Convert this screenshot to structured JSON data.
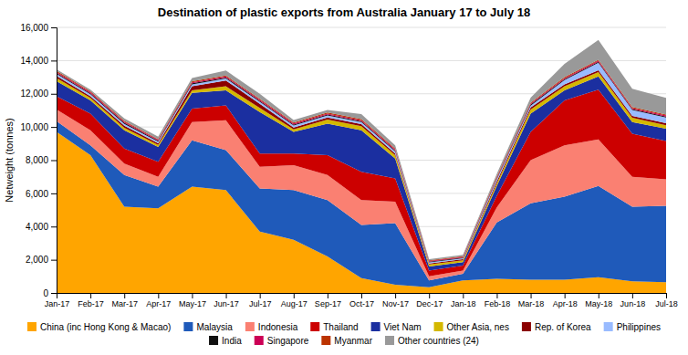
{
  "chart_data": {
    "type": "area",
    "title": "Destination of plastic exports from Australia January 17 to July 18",
    "y_label": "Netweight (tonnes)",
    "stacked": true,
    "grid": true,
    "legend": "bottom",
    "ylim": [
      0,
      16000
    ],
    "yticks": [
      0,
      {
        "value": 2000,
        "label": "2,000"
      },
      {
        "value": 4000,
        "label": "4,000"
      },
      {
        "value": 6000,
        "label": "6,000"
      },
      {
        "value": 8000,
        "label": "8,000"
      },
      {
        "value": 10000,
        "label": "10,000"
      },
      {
        "value": 12000,
        "label": "12,000"
      },
      {
        "value": 14000,
        "label": "14,000"
      },
      {
        "value": 16000,
        "label": "16,000"
      }
    ],
    "categories": [
      "Jan-17",
      "Feb-17",
      "Mar-17",
      "Apr-17",
      "May-17",
      "Jun-17",
      "Jul-17",
      "Aug-17",
      "Sep-17",
      "Oct-17",
      "Nov-17",
      "Dec-17",
      "Jan-18",
      "Feb-18",
      "Mar-18",
      "Apr-18",
      "May-18",
      "Jun-18",
      "Jul-18"
    ],
    "series": [
      {
        "name": "China (inc Hong Kong & Macao)",
        "color": "#FFA500",
        "values": [
          9700,
          8300,
          5200,
          5100,
          6400,
          6200,
          3700,
          3200,
          2200,
          900,
          500,
          350,
          750,
          850,
          800,
          800,
          950,
          700,
          650
        ]
      },
      {
        "name": "Malaysia",
        "color": "#1F5ABA",
        "values": [
          650,
          600,
          1900,
          1300,
          2800,
          2400,
          2600,
          3000,
          3400,
          3200,
          3700,
          400,
          400,
          3400,
          4600,
          5000,
          5500,
          4500,
          4600
        ]
      },
      {
        "name": "Indonesia",
        "color": "#FA8072",
        "values": [
          700,
          900,
          700,
          600,
          1100,
          1800,
          1300,
          1500,
          1500,
          1500,
          1300,
          250,
          200,
          900,
          2600,
          3100,
          2800,
          1800,
          1600
        ]
      },
      {
        "name": "Thailand",
        "color": "#CC0000",
        "values": [
          800,
          1000,
          900,
          900,
          800,
          900,
          800,
          700,
          1200,
          1700,
          1400,
          350,
          300,
          700,
          1700,
          2700,
          3000,
          2600,
          2300
        ]
      },
      {
        "name": "Viet Nam",
        "color": "#1B2FA0",
        "values": [
          900,
          800,
          1100,
          900,
          950,
          900,
          2500,
          1300,
          1900,
          2500,
          1200,
          250,
          200,
          600,
          1100,
          600,
          800,
          700,
          750
        ]
      },
      {
        "name": "Other Asia, nes",
        "color": "#D4B800",
        "values": [
          200,
          150,
          150,
          120,
          150,
          250,
          250,
          150,
          250,
          250,
          200,
          120,
          120,
          150,
          250,
          250,
          250,
          250,
          200
        ]
      },
      {
        "name": "Rep. of Korea",
        "color": "#8B0000",
        "values": [
          120,
          100,
          120,
          100,
          250,
          350,
          250,
          120,
          120,
          120,
          100,
          60,
          60,
          120,
          120,
          120,
          120,
          120,
          120
        ]
      },
      {
        "name": "Philippines",
        "color": "#99BBFF",
        "values": [
          120,
          120,
          120,
          100,
          120,
          120,
          120,
          120,
          120,
          120,
          120,
          60,
          60,
          120,
          120,
          250,
          450,
          350,
          350
        ]
      },
      {
        "name": "India",
        "color": "#111111",
        "values": [
          60,
          60,
          60,
          50,
          60,
          60,
          60,
          60,
          60,
          60,
          60,
          40,
          40,
          60,
          60,
          60,
          60,
          60,
          60
        ]
      },
      {
        "name": "Singapore",
        "color": "#CC0055",
        "values": [
          60,
          60,
          60,
          50,
          60,
          60,
          60,
          60,
          60,
          60,
          60,
          40,
          40,
          60,
          60,
          60,
          60,
          60,
          60
        ]
      },
      {
        "name": "Myanmar",
        "color": "#BB3300",
        "values": [
          60,
          60,
          60,
          50,
          60,
          60,
          60,
          60,
          60,
          60,
          60,
          40,
          40,
          60,
          60,
          60,
          60,
          60,
          60
        ]
      },
      {
        "name": "Other countries (24)",
        "color": "#999999",
        "values": [
          100,
          100,
          150,
          150,
          200,
          300,
          300,
          150,
          150,
          300,
          200,
          80,
          80,
          150,
          300,
          800,
          1200,
          1100,
          1000
        ]
      }
    ]
  }
}
